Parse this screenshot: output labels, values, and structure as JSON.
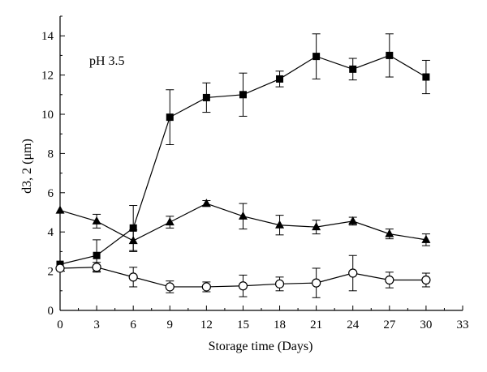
{
  "chart_data": {
    "type": "line",
    "annotation": "pH 3.5",
    "xlabel": "Storage time (Days)",
    "ylabel": "d3, 2 (μm)",
    "xlim": [
      0,
      33
    ],
    "ylim": [
      0,
      15
    ],
    "xticks": [
      0,
      3,
      6,
      9,
      12,
      15,
      18,
      21,
      24,
      27,
      30,
      33
    ],
    "yticks": [
      0,
      2,
      4,
      6,
      8,
      10,
      12,
      14
    ],
    "grid": false,
    "legend": "none",
    "x": [
      0,
      3,
      6,
      9,
      12,
      15,
      18,
      21,
      24,
      27,
      30
    ],
    "series": [
      {
        "marker": "square-filled",
        "values": [
          2.35,
          2.8,
          4.2,
          9.85,
          10.85,
          11.0,
          11.8,
          12.95,
          12.3,
          13.0,
          11.9
        ],
        "errors": [
          0.0,
          0.8,
          1.15,
          1.4,
          0.75,
          1.1,
          0.4,
          1.15,
          0.55,
          1.1,
          0.85
        ]
      },
      {
        "marker": "triangle-filled",
        "values": [
          5.1,
          4.55,
          3.55,
          4.5,
          5.45,
          4.8,
          4.35,
          4.25,
          4.55,
          3.9,
          3.6
        ],
        "errors": [
          0.0,
          0.35,
          0.55,
          0.3,
          0.15,
          0.65,
          0.5,
          0.35,
          0.2,
          0.25,
          0.3
        ]
      },
      {
        "marker": "circle-open",
        "values": [
          2.15,
          2.2,
          1.7,
          1.2,
          1.2,
          1.25,
          1.35,
          1.4,
          1.9,
          1.55,
          1.55
        ],
        "errors": [
          0.0,
          0.25,
          0.5,
          0.3,
          0.25,
          0.55,
          0.35,
          0.75,
          0.9,
          0.4,
          0.35
        ]
      }
    ]
  }
}
